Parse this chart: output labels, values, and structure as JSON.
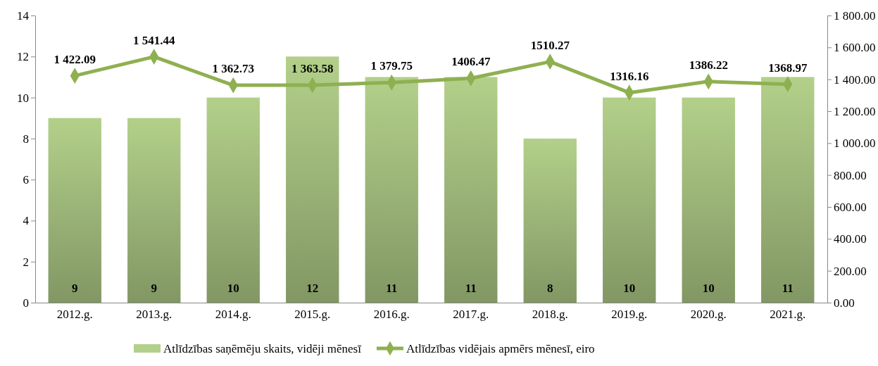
{
  "chart_data": {
    "type": "bar",
    "categories": [
      "2012.g.",
      "2013.g.",
      "2014.g.",
      "2015.g.",
      "2016.g.",
      "2017.g.",
      "2018.g.",
      "2019.g.",
      "2020.g.",
      "2021.g."
    ],
    "series": [
      {
        "name": "Atlīdzības saņēmēju skaits, vidēji mēnesī",
        "color": "#b3d08a",
        "values": [
          9,
          9,
          10,
          12,
          11,
          11,
          8,
          10,
          10,
          11
        ],
        "value_labels": [
          "9",
          "9",
          "10",
          "12",
          "11",
          "11",
          "8",
          "10",
          "10",
          "11"
        ]
      },
      {
        "name": "Atlīdzības vidējais apmērs mēnesī, eiro",
        "type": "line",
        "axis": "y2",
        "color": "#8fb050",
        "values": [
          1422.09,
          1541.44,
          1362.73,
          1363.58,
          1379.75,
          1406.47,
          1510.27,
          1316.16,
          1386.22,
          1368.97
        ],
        "value_labels": [
          "1 422.09",
          "1 541.44",
          "1 362.73",
          "1 363.58",
          "1 379.75",
          "1406.47",
          "1510.27",
          "1316.16",
          "1386.22",
          "1368.97"
        ]
      }
    ],
    "ylim": [
      0,
      14
    ],
    "yticks": [
      0,
      2,
      4,
      6,
      8,
      10,
      12,
      14
    ],
    "y2lim": [
      0,
      1800
    ],
    "y2ticks": [
      {
        "value": 0,
        "label": "0.00"
      },
      {
        "value": 200,
        "label": "200.00"
      },
      {
        "value": 400,
        "label": "400.00"
      },
      {
        "value": 600,
        "label": "600.00"
      },
      {
        "value": 800,
        "label": "800.00"
      },
      {
        "value": 1000,
        "label": "1 000.00"
      },
      {
        "value": 1200,
        "label": "1 200.00"
      },
      {
        "value": 1400,
        "label": "1 400.00"
      },
      {
        "value": 1600,
        "label": "1 600.00"
      },
      {
        "value": 1800,
        "label": "1 800.00"
      }
    ],
    "legend": "bottom",
    "marker": "diamond",
    "line_style": "solid"
  }
}
